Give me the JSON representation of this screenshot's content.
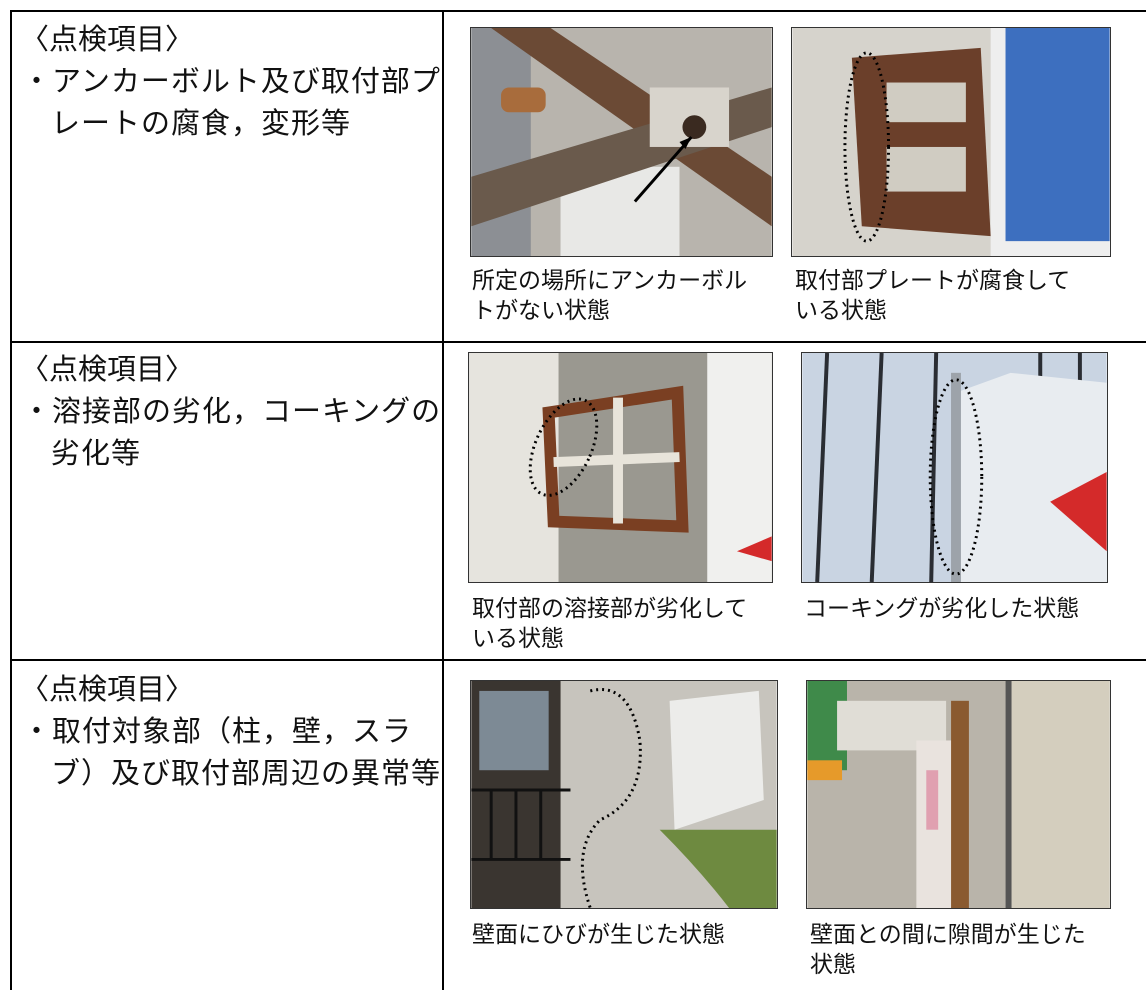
{
  "rows": [
    {
      "heading": "〈点検項目〉",
      "item": "・アンカーボルト及び取付部プレートの腐食，変形等",
      "photos": [
        {
          "caption": "所定の場所にアンカーボルトがない状態"
        },
        {
          "caption": "取付部プレートが腐食している状態"
        }
      ]
    },
    {
      "heading": "〈点検項目〉",
      "item": "・溶接部の劣化，コーキングの劣化等",
      "photos": [
        {
          "caption": "取付部の溶接部が劣化している状態"
        },
        {
          "caption": "コーキングが劣化した状態"
        }
      ]
    },
    {
      "heading": "〈点検項目〉",
      "item": "・取付対象部（柱，壁，スラブ）及び取付部周辺の異常等",
      "photos": [
        {
          "caption": "壁面にひびが生じた状態"
        },
        {
          "caption": "壁面との間に隙間が生じた状態"
        }
      ]
    }
  ]
}
